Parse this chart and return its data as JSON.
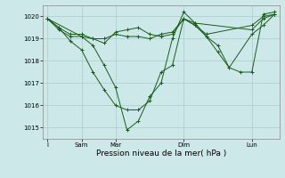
{
  "background_color": "#cce8e8",
  "grid_color": "#aacaca",
  "line_color": "#1a5c1a",
  "marker_color": "#1a5c1a",
  "xlabel": "Pression niveau de la mer( hPa )",
  "ylim": [
    1014.5,
    1020.5
  ],
  "yticks": [
    1015,
    1016,
    1017,
    1018,
    1019,
    1020
  ],
  "xlim": [
    -5,
    245
  ],
  "xtick_positions": [
    0,
    36,
    72,
    144,
    216
  ],
  "xtick_labels": [
    "I",
    "Sam",
    "Mar",
    "Dim",
    "Lun"
  ],
  "series": [
    {
      "x": [
        0,
        12,
        24,
        36,
        48,
        60,
        72,
        84,
        96,
        108,
        120,
        132,
        144,
        156,
        168,
        180,
        192,
        204,
        216,
        228,
        240
      ],
      "y": [
        1019.9,
        1019.5,
        1018.9,
        1018.5,
        1017.5,
        1016.7,
        1016.0,
        1015.8,
        1015.8,
        1016.2,
        1017.5,
        1017.8,
        1019.9,
        1019.6,
        1019.1,
        1018.7,
        1017.7,
        1017.5,
        1017.5,
        1020.1,
        1020.2
      ]
    },
    {
      "x": [
        0,
        12,
        24,
        36,
        48,
        60,
        72,
        84,
        96,
        108,
        120,
        132,
        144,
        156,
        168,
        216,
        228,
        240
      ],
      "y": [
        1019.9,
        1019.4,
        1019.1,
        1019.1,
        1019.0,
        1019.0,
        1019.2,
        1019.1,
        1019.1,
        1019.0,
        1019.2,
        1019.3,
        1019.9,
        1019.6,
        1019.2,
        1019.6,
        1020.0,
        1020.1
      ]
    },
    {
      "x": [
        0,
        12,
        24,
        36,
        48,
        60,
        72,
        84,
        96,
        108,
        120,
        132,
        144,
        156,
        216,
        228,
        240
      ],
      "y": [
        1019.9,
        1019.5,
        1019.2,
        1019.2,
        1019.0,
        1018.8,
        1019.3,
        1019.4,
        1019.5,
        1019.2,
        1019.1,
        1019.2,
        1019.9,
        1019.7,
        1019.4,
        1019.9,
        1020.1
      ]
    },
    {
      "x": [
        0,
        36,
        48,
        60,
        72,
        84,
        96,
        108,
        120,
        132,
        144,
        156,
        168,
        180,
        192,
        216,
        228,
        240
      ],
      "y": [
        1019.9,
        1019.1,
        1018.7,
        1017.8,
        1016.8,
        1014.9,
        1015.3,
        1016.4,
        1017.0,
        1019.0,
        1020.2,
        1019.7,
        1019.1,
        1018.4,
        1017.7,
        1019.2,
        1019.6,
        1020.1
      ]
    }
  ]
}
